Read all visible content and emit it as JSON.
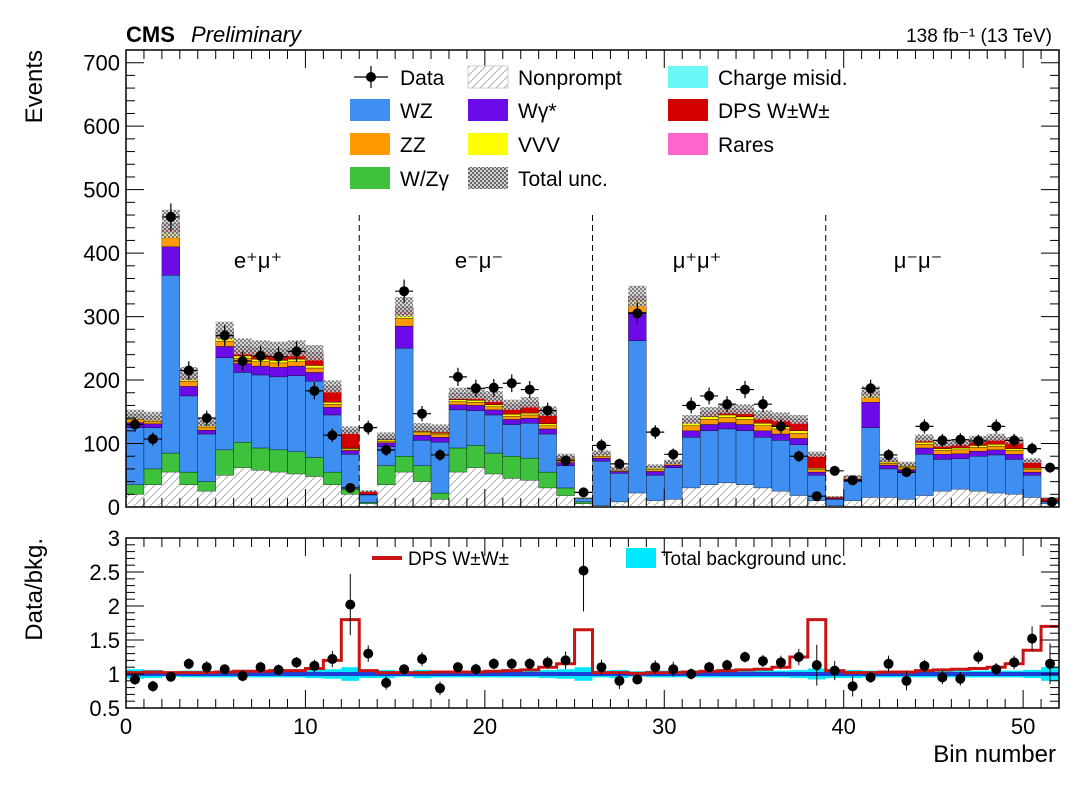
{
  "header": {
    "experiment": "CMS",
    "status": "Preliminary",
    "lumi": "138 fb⁻¹ (13 TeV)"
  },
  "colors": {
    "WZ": "#3f8ff2",
    "ZZ": "#ff9900",
    "WZgamma": "#3ec23e",
    "Nonprompt": "#e8e8e8",
    "Wgammastar": "#6a0be8",
    "VVV": "#ffff00",
    "ChargeMisid": "#6cf7f7",
    "DPS": "#d40000",
    "Rares": "#ff66cc",
    "Unc": "#9a9a9a",
    "Data": "#000000",
    "RatioUnc": "#00e8ff",
    "RatioLine": "#1b3fd8",
    "DPSLine": "#c81414"
  },
  "legend": {
    "items": [
      {
        "label": "Data",
        "key": "Data",
        "style": "marker"
      },
      {
        "label": "Nonprompt",
        "key": "Nonprompt",
        "style": "hatch"
      },
      {
        "label": "Charge misid.",
        "key": "ChargeMisid",
        "style": "box"
      },
      {
        "label": "WZ",
        "key": "WZ",
        "style": "box"
      },
      {
        "label": "Wγ*",
        "key": "Wgammastar",
        "style": "box"
      },
      {
        "label": "DPS W±W±",
        "key": "DPS",
        "style": "box"
      },
      {
        "label": "ZZ",
        "key": "ZZ",
        "style": "box"
      },
      {
        "label": "VVV",
        "key": "VVV",
        "style": "box"
      },
      {
        "label": "Rares",
        "key": "Rares",
        "style": "box"
      },
      {
        "label": "W/Zγ",
        "key": "WZgamma",
        "style": "box"
      },
      {
        "label": "Total unc.",
        "key": "Unc",
        "style": "crosshatch"
      }
    ]
  },
  "channels": [
    "e⁺μ⁺",
    "e⁻μ⁻",
    "μ⁺μ⁺",
    "μ⁻μ⁻"
  ],
  "chart_data": [
    {
      "type": "bar",
      "stacked": true,
      "ylabel": "Events",
      "ylim": [
        0,
        720
      ],
      "yticks": [
        0,
        100,
        200,
        300,
        400,
        500,
        600,
        700
      ],
      "xlim": [
        0,
        52
      ],
      "xticks": [
        0,
        10,
        20,
        30,
        40,
        50
      ],
      "channel_boundaries": [
        13,
        26,
        39
      ],
      "bins": [
        0,
        1,
        2,
        3,
        4,
        5,
        6,
        7,
        8,
        9,
        10,
        11,
        12,
        13,
        14,
        15,
        16,
        17,
        18,
        19,
        20,
        21,
        22,
        23,
        24,
        25,
        26,
        27,
        28,
        29,
        30,
        31,
        32,
        33,
        34,
        35,
        36,
        37,
        38,
        39,
        40,
        41,
        42,
        43,
        44,
        45,
        46,
        47,
        48,
        49,
        50,
        51
      ],
      "series": [
        {
          "name": "Nonprompt",
          "key": "Nonprompt",
          "values": [
            20,
            35,
            55,
            35,
            25,
            50,
            62,
            58,
            55,
            52,
            48,
            35,
            20,
            5,
            35,
            55,
            40,
            12,
            55,
            62,
            52,
            45,
            42,
            30,
            18,
            5,
            2,
            8,
            22,
            10,
            12,
            30,
            35,
            38,
            35,
            30,
            25,
            18,
            10,
            2,
            10,
            15,
            15,
            12,
            18,
            25,
            28,
            25,
            22,
            20,
            15,
            5
          ]
        },
        {
          "name": "W/Zγ",
          "key": "WZgamma",
          "values": [
            15,
            25,
            30,
            20,
            15,
            40,
            40,
            35,
            35,
            35,
            30,
            20,
            8,
            2,
            30,
            25,
            25,
            10,
            38,
            35,
            33,
            35,
            35,
            25,
            12,
            3,
            0,
            0,
            0,
            0,
            0,
            0,
            0,
            0,
            0,
            0,
            0,
            0,
            0,
            0,
            0,
            0,
            0,
            0,
            0,
            0,
            0,
            0,
            0,
            0,
            0,
            0
          ]
        },
        {
          "name": "WZ",
          "key": "WZ",
          "values": [
            90,
            65,
            280,
            120,
            75,
            145,
            110,
            115,
            115,
            120,
            120,
            90,
            55,
            12,
            30,
            170,
            40,
            80,
            60,
            55,
            60,
            50,
            55,
            60,
            35,
            5,
            70,
            45,
            240,
            40,
            50,
            80,
            85,
            85,
            85,
            80,
            80,
            80,
            40,
            10,
            30,
            110,
            45,
            42,
            65,
            50,
            48,
            55,
            60,
            55,
            35,
            3
          ]
        },
        {
          "name": "Wγ*",
          "key": "Wgammastar",
          "values": [
            8,
            6,
            45,
            15,
            6,
            18,
            14,
            14,
            15,
            15,
            14,
            12,
            6,
            1,
            6,
            35,
            8,
            8,
            8,
            8,
            8,
            8,
            8,
            8,
            5,
            1,
            5,
            3,
            45,
            6,
            4,
            10,
            10,
            10,
            10,
            10,
            10,
            10,
            5,
            1,
            4,
            40,
            6,
            5,
            10,
            8,
            8,
            8,
            8,
            8,
            5,
            1
          ]
        },
        {
          "name": "ZZ",
          "key": "ZZ",
          "values": [
            5,
            4,
            15,
            8,
            5,
            8,
            8,
            7,
            7,
            7,
            7,
            5,
            3,
            0,
            3,
            12,
            4,
            4,
            5,
            5,
            5,
            5,
            5,
            5,
            3,
            0,
            3,
            2,
            12,
            3,
            2,
            8,
            8,
            8,
            8,
            8,
            8,
            8,
            4,
            0,
            2,
            8,
            3,
            3,
            6,
            6,
            6,
            6,
            6,
            6,
            4,
            0
          ]
        },
        {
          "name": "VVV",
          "key": "VVV",
          "values": [
            2,
            2,
            8,
            3,
            2,
            4,
            4,
            4,
            4,
            4,
            4,
            3,
            1,
            0,
            2,
            6,
            2,
            2,
            3,
            3,
            3,
            3,
            3,
            3,
            2,
            0,
            2,
            1,
            6,
            2,
            1,
            4,
            4,
            4,
            4,
            4,
            4,
            4,
            2,
            0,
            1,
            4,
            2,
            2,
            3,
            3,
            3,
            3,
            3,
            3,
            2,
            0
          ]
        },
        {
          "name": "DPS W±W±",
          "key": "DPS",
          "values": [
            2,
            2,
            6,
            4,
            2,
            8,
            10,
            12,
            12,
            12,
            15,
            20,
            25,
            5,
            2,
            6,
            3,
            4,
            5,
            6,
            8,
            10,
            12,
            15,
            2,
            0,
            1,
            1,
            3,
            1,
            1,
            3,
            5,
            7,
            9,
            10,
            12,
            15,
            20,
            3,
            0,
            1,
            2,
            2,
            4,
            5,
            6,
            7,
            8,
            10,
            10,
            5
          ]
        },
        {
          "name": "Charge misid.",
          "key": "ChargeMisid",
          "values": [
            2,
            2,
            3,
            2,
            2,
            2,
            2,
            2,
            2,
            2,
            2,
            2,
            1,
            0,
            2,
            2,
            2,
            2,
            2,
            2,
            2,
            2,
            2,
            2,
            1,
            0,
            0,
            0,
            0,
            0,
            0,
            0,
            0,
            0,
            0,
            0,
            0,
            0,
            0,
            0,
            0,
            0,
            0,
            0,
            0,
            0,
            0,
            0,
            0,
            0,
            0,
            0
          ]
        },
        {
          "name": "Rares",
          "key": "Rares",
          "values": [
            2,
            2,
            4,
            3,
            2,
            3,
            3,
            3,
            3,
            3,
            3,
            3,
            2,
            0,
            2,
            4,
            2,
            2,
            3,
            3,
            3,
            3,
            3,
            3,
            2,
            0,
            2,
            1,
            4,
            2,
            1,
            3,
            3,
            3,
            3,
            3,
            3,
            3,
            2,
            0,
            1,
            3,
            2,
            2,
            3,
            3,
            3,
            3,
            3,
            3,
            2,
            0
          ]
        }
      ],
      "unc_frac": 0.05,
      "data_points": [
        130,
        107,
        457,
        215,
        140,
        270,
        230,
        238,
        237,
        245,
        183,
        113,
        30,
        125,
        90,
        340,
        147,
        82,
        205,
        187,
        188,
        195,
        185,
        152,
        73,
        23,
        97,
        68,
        305,
        118,
        83,
        160,
        175,
        162,
        185,
        162,
        127,
        80,
        17,
        57,
        42,
        187,
        82,
        55,
        127,
        105,
        106,
        104,
        127,
        105,
        92,
        62
      ],
      "data_extra": [
        {
          "x": 51.6,
          "y": 8
        }
      ]
    },
    {
      "type": "scatter",
      "ylabel": "Data/bkg.",
      "xlabel": "Bin number",
      "ylim": [
        0.5,
        3
      ],
      "yticks": [
        0.5,
        1,
        1.5,
        2,
        2.5,
        3
      ],
      "ytick_labels": [
        "0.5",
        "1",
        "1.5",
        "2",
        "2.5",
        "3"
      ],
      "xlim": [
        0,
        52
      ],
      "xticks": [
        0,
        10,
        20,
        30,
        40,
        50
      ],
      "legend": [
        {
          "label": "DPS W±W±",
          "key": "DPSLine",
          "style": "line"
        },
        {
          "label": "Total background unc.",
          "key": "RatioUnc",
          "style": "box"
        }
      ],
      "ratio_points": [
        0.92,
        0.82,
        0.96,
        1.15,
        1.1,
        1.07,
        0.97,
        1.1,
        1.06,
        1.17,
        1.12,
        1.22,
        2.02,
        1.3,
        0.87,
        1.07,
        1.22,
        0.79,
        1.1,
        1.07,
        1.15,
        1.15,
        1.15,
        1.17,
        1.2,
        2.52,
        1.1,
        0.9,
        0.92,
        1.1,
        1.07,
        1.0,
        1.1,
        1.13,
        1.25,
        1.19,
        1.17,
        1.25,
        1.13,
        1.05,
        0.82,
        0.95,
        1.15,
        0.9,
        1.12,
        0.95,
        0.93,
        1.25,
        1.07,
        1.17,
        1.52,
        1.15
      ],
      "ratio_err": [
        0.08,
        0.08,
        0.05,
        0.08,
        0.09,
        0.07,
        0.08,
        0.08,
        0.08,
        0.08,
        0.09,
        0.12,
        0.45,
        0.12,
        0.1,
        0.06,
        0.1,
        0.1,
        0.08,
        0.08,
        0.08,
        0.08,
        0.08,
        0.09,
        0.13,
        0.6,
        0.11,
        0.12,
        0.06,
        0.1,
        0.11,
        0.08,
        0.08,
        0.08,
        0.08,
        0.09,
        0.1,
        0.12,
        0.3,
        0.14,
        0.15,
        0.08,
        0.12,
        0.14,
        0.09,
        0.1,
        0.1,
        0.1,
        0.09,
        0.1,
        0.18,
        0.3
      ],
      "dps_ratio": [
        1.02,
        1.03,
        1.02,
        1.02,
        1.02,
        1.03,
        1.04,
        1.04,
        1.05,
        1.05,
        1.08,
        1.2,
        1.8,
        1.05,
        1.02,
        1.02,
        1.02,
        1.03,
        1.03,
        1.03,
        1.04,
        1.05,
        1.06,
        1.1,
        1.15,
        1.65,
        1.02,
        1.02,
        1.01,
        1.02,
        1.02,
        1.03,
        1.04,
        1.05,
        1.06,
        1.07,
        1.1,
        1.25,
        1.8,
        1.05,
        1.02,
        1.02,
        1.03,
        1.03,
        1.05,
        1.06,
        1.07,
        1.08,
        1.1,
        1.15,
        1.35,
        1.7
      ],
      "bkg_unc": [
        0.07,
        0.06,
        0.04,
        0.05,
        0.05,
        0.05,
        0.05,
        0.05,
        0.05,
        0.05,
        0.06,
        0.07,
        0.1,
        0.06,
        0.06,
        0.04,
        0.06,
        0.05,
        0.05,
        0.05,
        0.05,
        0.05,
        0.05,
        0.06,
        0.07,
        0.1,
        0.05,
        0.06,
        0.04,
        0.05,
        0.05,
        0.05,
        0.05,
        0.05,
        0.05,
        0.05,
        0.05,
        0.06,
        0.08,
        0.06,
        0.06,
        0.05,
        0.05,
        0.05,
        0.05,
        0.05,
        0.05,
        0.05,
        0.05,
        0.05,
        0.06,
        0.1
      ]
    }
  ]
}
